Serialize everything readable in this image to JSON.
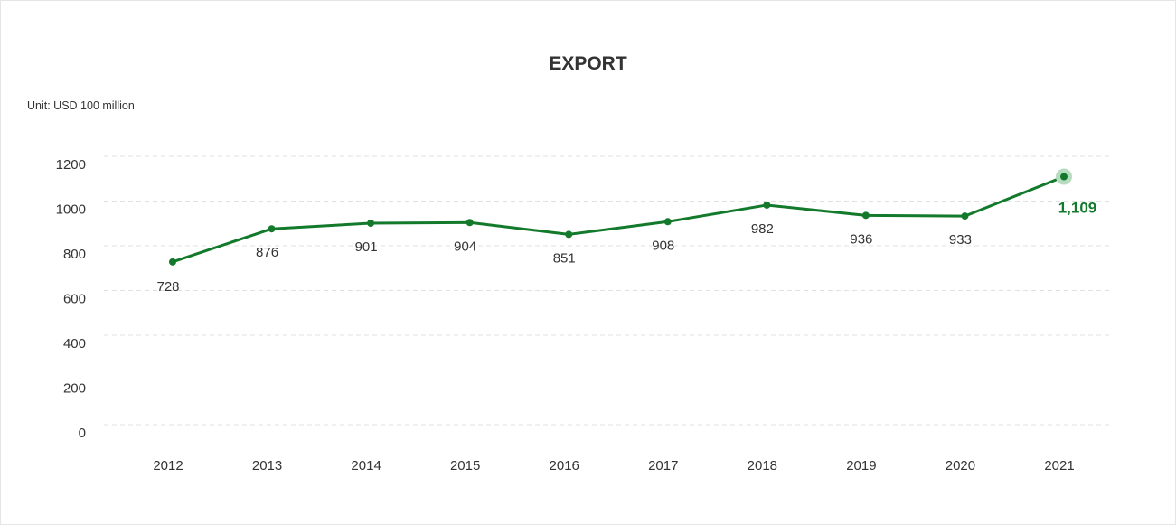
{
  "chart_data": {
    "type": "line",
    "title": "EXPORT",
    "unit_label": "Unit: USD 100 million",
    "xlabel": "",
    "ylabel": "",
    "categories": [
      "2012",
      "2013",
      "2014",
      "2015",
      "2016",
      "2017",
      "2018",
      "2019",
      "2020",
      "2021"
    ],
    "series": [
      {
        "values": [
          728,
          876,
          901,
          904,
          851,
          908,
          982,
          936,
          933,
          1109
        ],
        "value_labels": [
          "728",
          "876",
          "901",
          "904",
          "851",
          "908",
          "982",
          "936",
          "933",
          "1,109"
        ]
      }
    ],
    "highlight_index": 9,
    "ylim": [
      0,
      1200
    ],
    "yticks": [
      0,
      200,
      400,
      600,
      800,
      1000,
      1200
    ],
    "ytick_labels": [
      "0",
      "200",
      "400",
      "600",
      "800",
      "1000",
      "1200"
    ],
    "grid": true,
    "legend": "none",
    "colors": {
      "line": "#137a2c",
      "highlight_halo": "#b7dcc0",
      "grid": "#e0e0e0",
      "text": "#333333"
    }
  }
}
